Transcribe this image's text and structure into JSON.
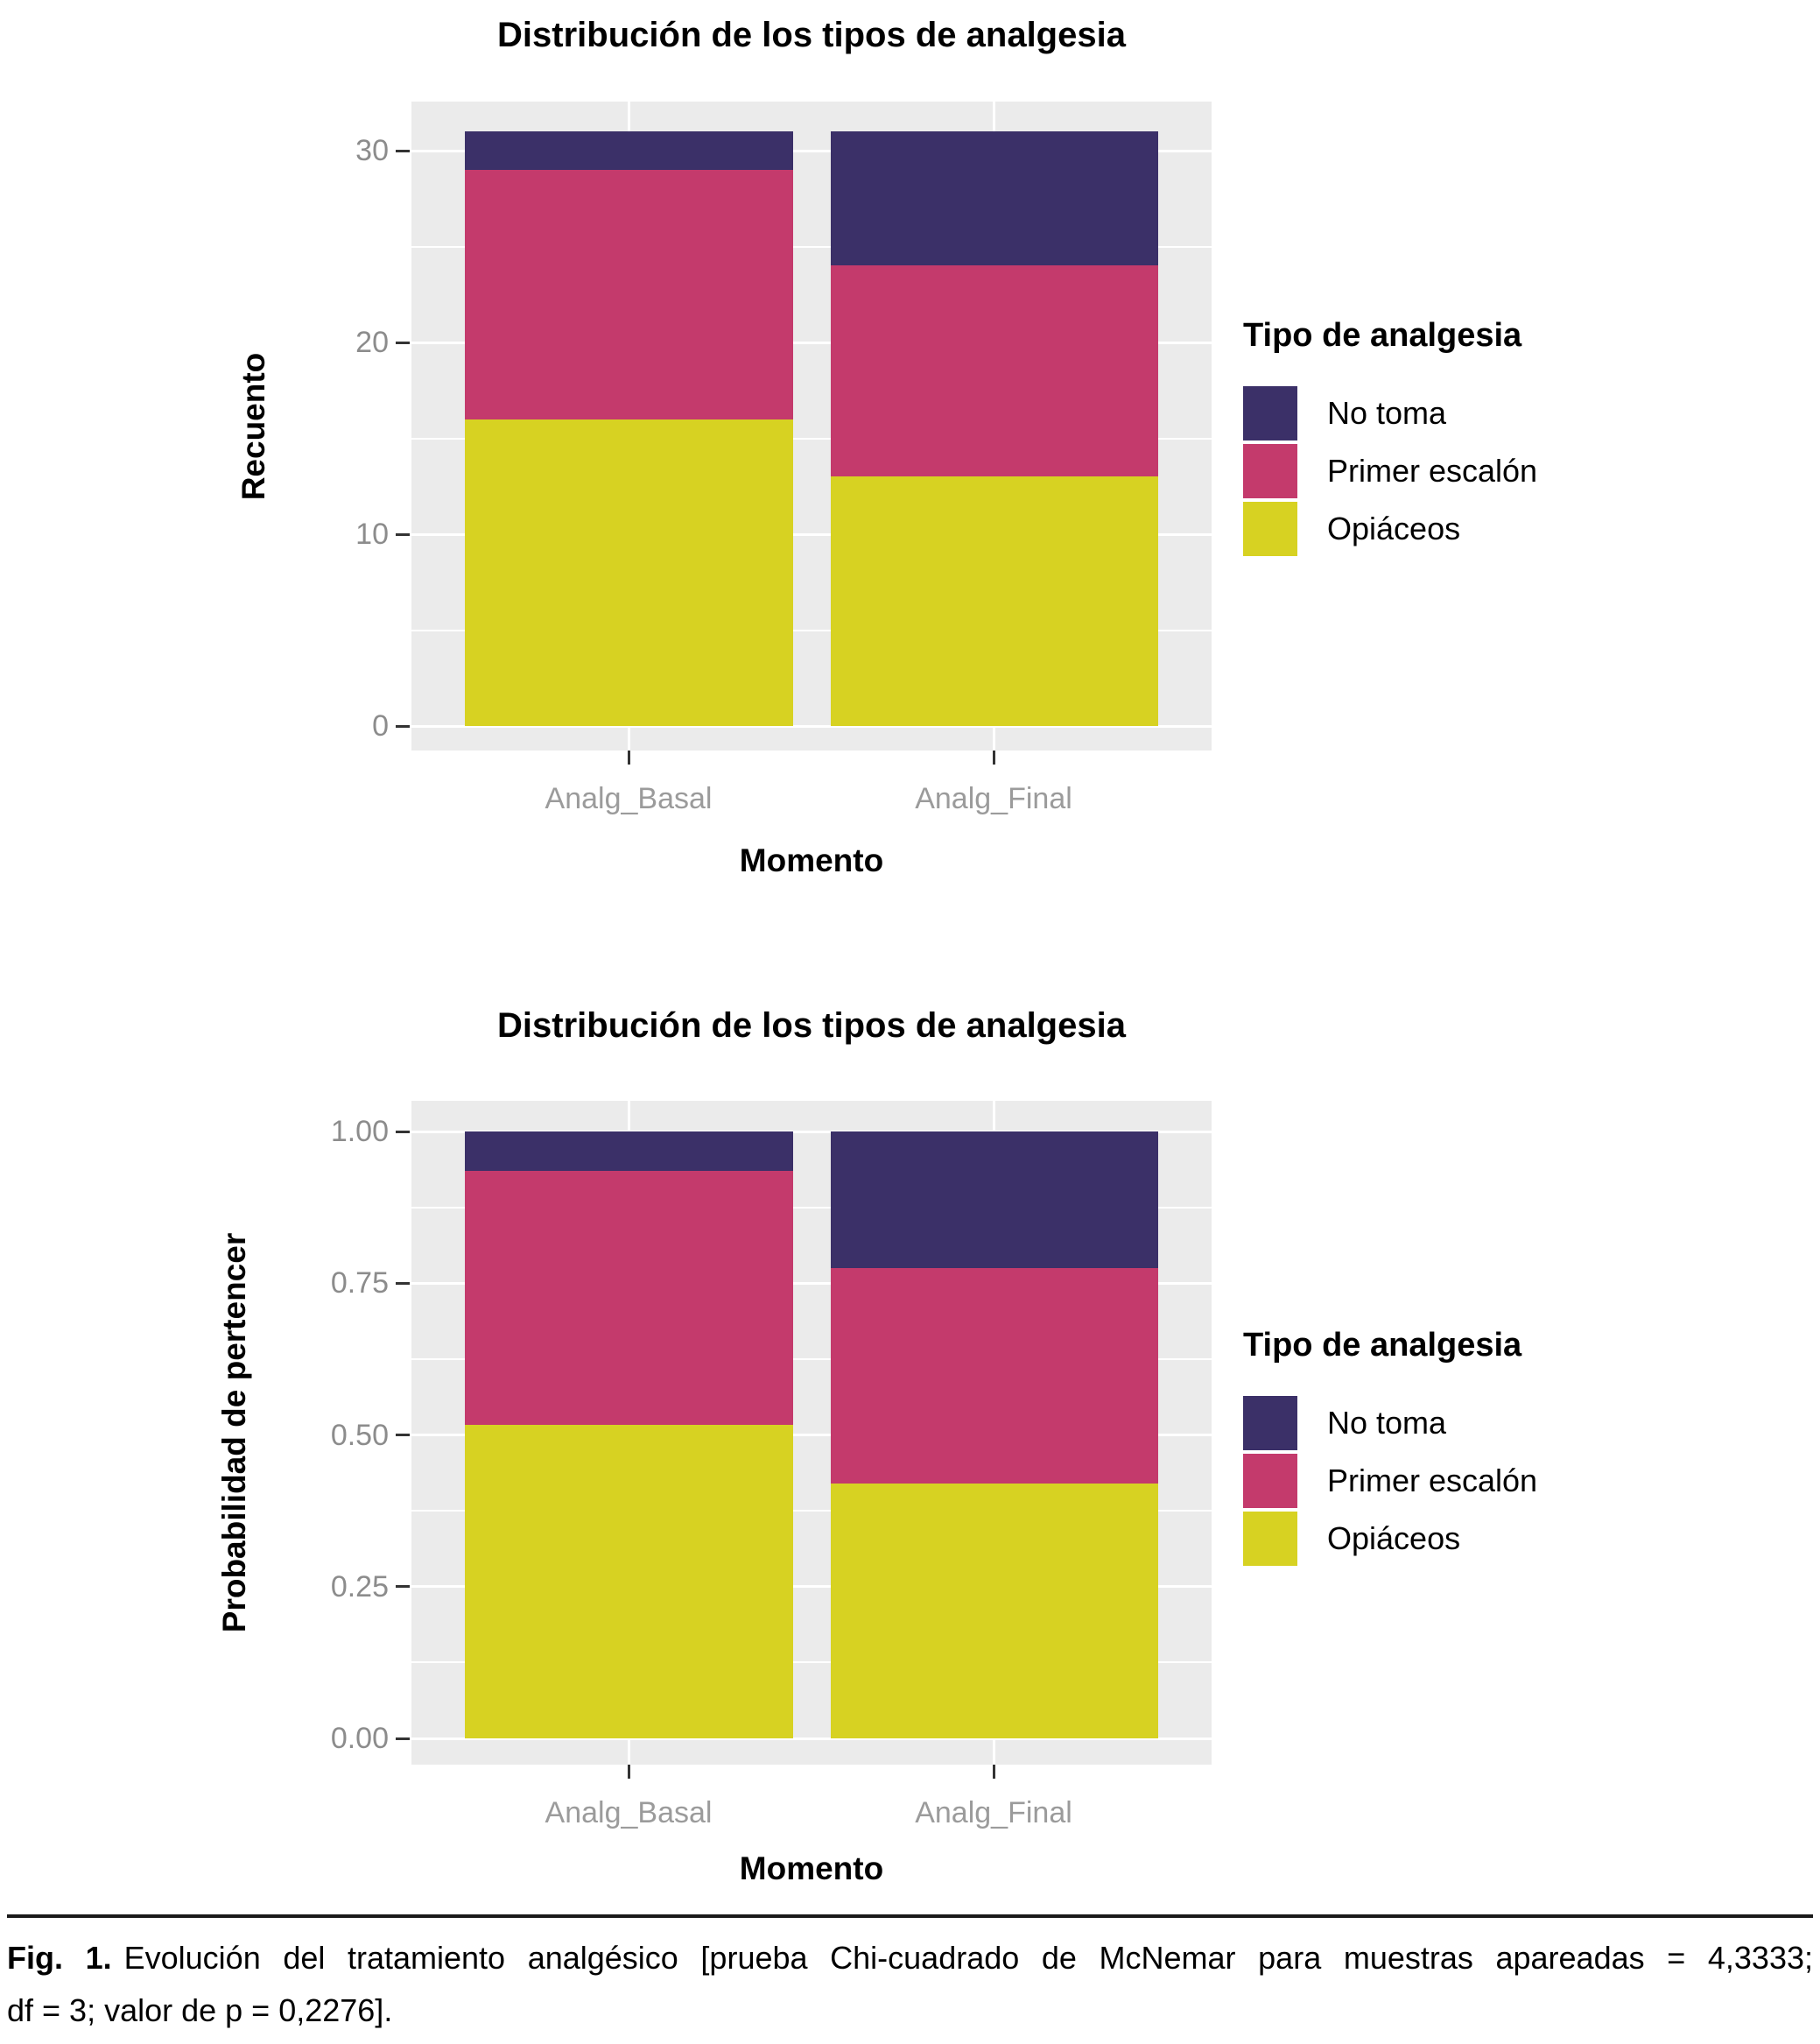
{
  "caption": {
    "prefix": "Fig. 1.",
    "line1": "Evolución del tratamiento analgésico [prueba Chi-cuadrado de McNemar para muestras apareadas = 4,3333;",
    "line2": "df = 3; valor de p = 0,2276]."
  },
  "chart_data": [
    {
      "type": "bar",
      "stacked": true,
      "title": "Distribución de los tipos de analgesia",
      "xlabel": "Momento",
      "ylabel": "Recuento",
      "categories": [
        "Analg_Basal",
        "Analg_Final"
      ],
      "series": [
        {
          "name": "No toma",
          "color": "#3b3068",
          "values": [
            2,
            7
          ]
        },
        {
          "name": "Primer escalón",
          "color": "#c43a6c",
          "values": [
            13,
            11
          ]
        },
        {
          "name": "Opiáceos",
          "color": "#d7d222",
          "values": [
            16,
            13
          ]
        }
      ],
      "ylim": [
        0,
        31
      ],
      "yticks": [
        {
          "value": 0,
          "label": "0"
        },
        {
          "value": 10,
          "label": "10"
        },
        {
          "value": 20,
          "label": "20"
        },
        {
          "value": 30,
          "label": "30"
        }
      ],
      "legend_title": "Tipo de analgesia",
      "legend_position": "right",
      "grid": true,
      "panel_bg": "#ebebeb"
    },
    {
      "type": "bar",
      "stacked": true,
      "normalized": true,
      "title": "Distribución de los tipos de analgesia",
      "xlabel": "Momento",
      "ylabel": "Probabilidad de pertencer",
      "categories": [
        "Analg_Basal",
        "Analg_Final"
      ],
      "series": [
        {
          "name": "No toma",
          "color": "#3b3068",
          "values": [
            0.0645,
            0.2258
          ]
        },
        {
          "name": "Primer escalón",
          "color": "#c43a6c",
          "values": [
            0.4194,
            0.3548
          ]
        },
        {
          "name": "Opiáceos",
          "color": "#d7d222",
          "values": [
            0.5161,
            0.4194
          ]
        }
      ],
      "ylim": [
        0,
        1
      ],
      "yticks": [
        {
          "value": 0,
          "label": "0.00"
        },
        {
          "value": 0.25,
          "label": "0.25"
        },
        {
          "value": 0.5,
          "label": "0.50"
        },
        {
          "value": 0.75,
          "label": "0.75"
        },
        {
          "value": 1,
          "label": "1.00"
        }
      ],
      "legend_title": "Tipo de analgesia",
      "legend_position": "right",
      "grid": true,
      "panel_bg": "#ebebeb"
    }
  ]
}
